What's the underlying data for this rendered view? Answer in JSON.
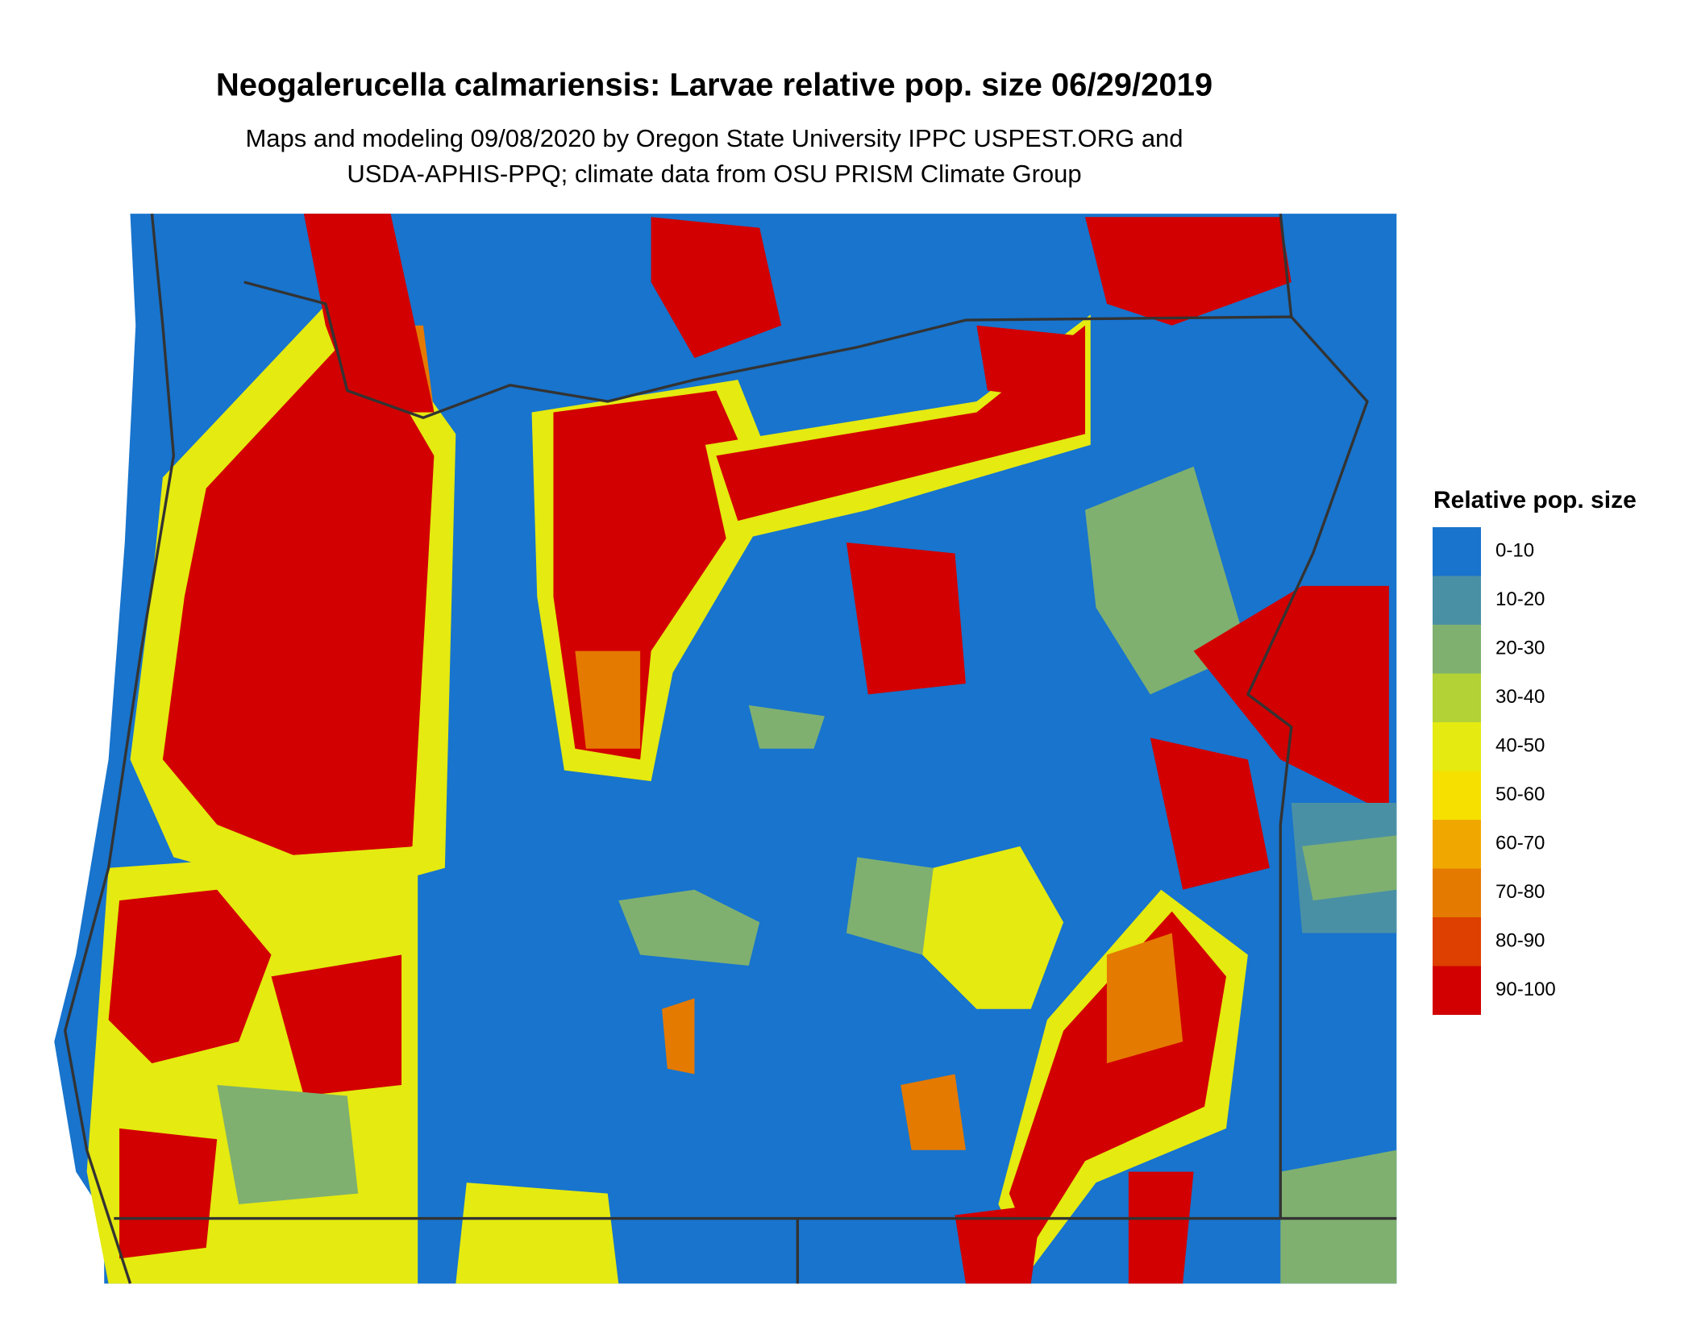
{
  "title": "Neogalerucella calmariensis: Larvae relative pop. size 06/29/2019",
  "subtitle": [
    "Maps and modeling 09/08/2020 by Oregon State University IPPC USPEST.ORG and",
    "USDA-APHIS-PPQ; climate data from OSU PRISM Climate Group"
  ],
  "legend": {
    "title": "Relative pop. size",
    "entries": [
      {
        "label": "0-10",
        "color": "#1874cd"
      },
      {
        "label": "10-20",
        "color": "#4a90a4"
      },
      {
        "label": "20-30",
        "color": "#7fb070"
      },
      {
        "label": "30-40",
        "color": "#b2d235"
      },
      {
        "label": "40-50",
        "color": "#e5ea10"
      },
      {
        "label": "50-60",
        "color": "#f5e000"
      },
      {
        "label": "60-70",
        "color": "#f0a800"
      },
      {
        "label": "70-80",
        "color": "#e57a00"
      },
      {
        "label": "80-90",
        "color": "#dd4000"
      },
      {
        "label": "90-100",
        "color": "#d20000"
      }
    ]
  }
}
